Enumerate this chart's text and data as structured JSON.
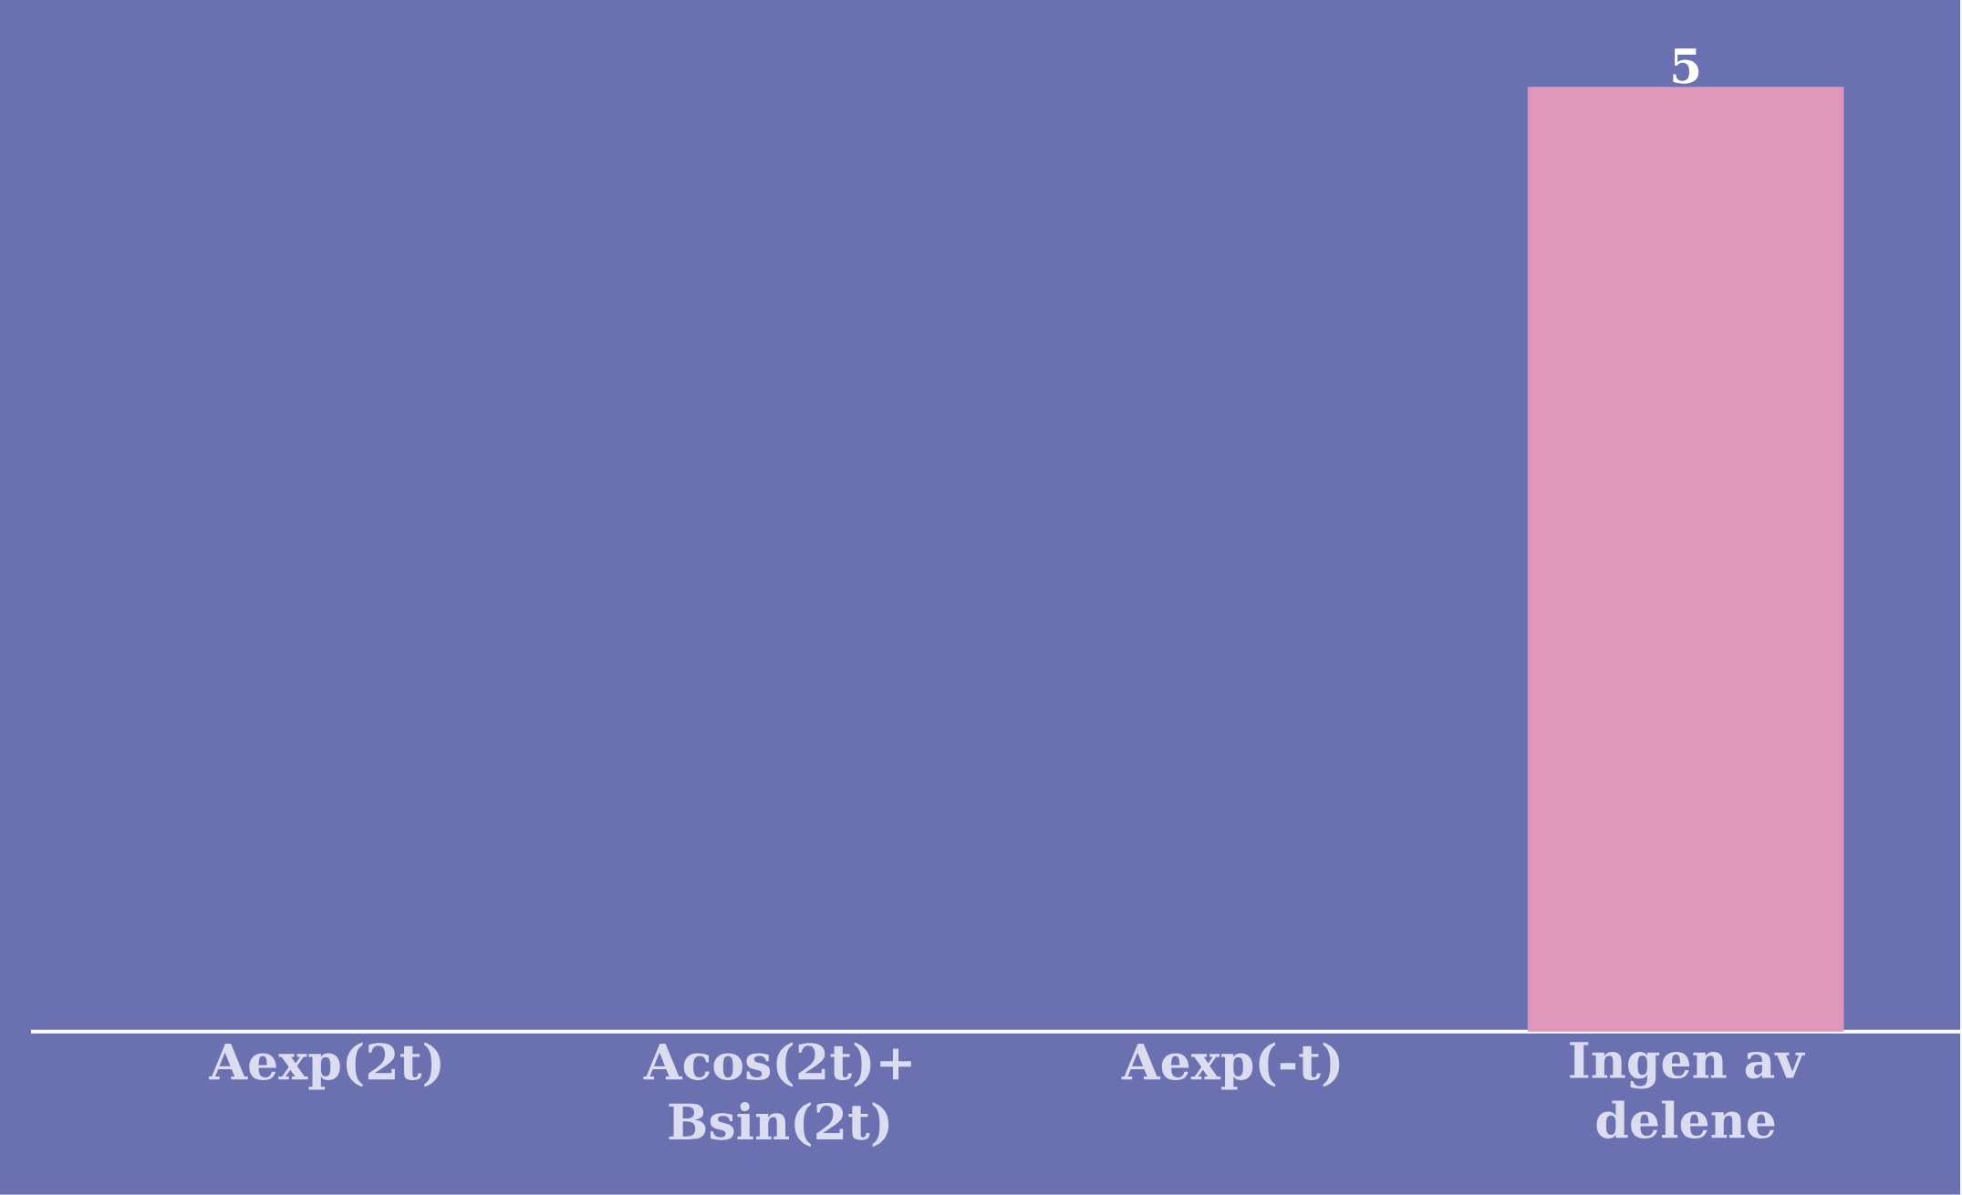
{
  "chart_data": {
    "type": "bar",
    "categories": [
      "Aexp(2t)",
      "Acos(2t)+ Bsin(2t)",
      "Aexp(-t)",
      "Ingen av delene"
    ],
    "values": [
      0,
      0,
      0,
      5
    ],
    "value_labels": [
      null,
      null,
      null,
      "5"
    ],
    "color": "#e096b8"
  }
}
